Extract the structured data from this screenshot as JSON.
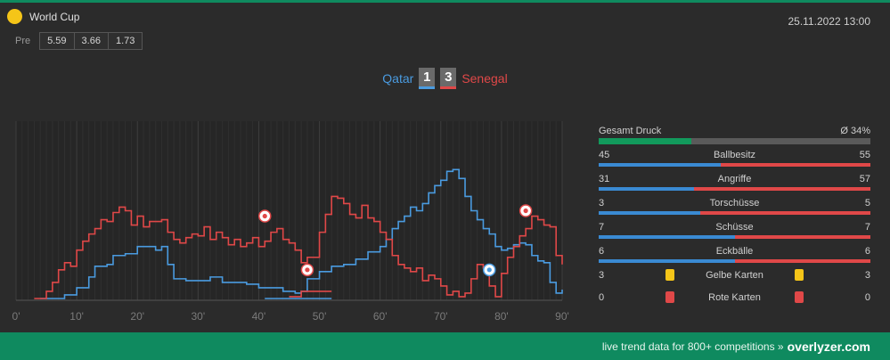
{
  "header": {
    "competition": "World Cup",
    "date": "25.11.2022 13:00",
    "pre_label": "Pre",
    "odds": [
      "5.59",
      "3.66",
      "1.73"
    ]
  },
  "match": {
    "home": "Qatar",
    "away": "Senegal",
    "home_score": "1",
    "away_score": "3"
  },
  "colors": {
    "home": "#4a9be0",
    "away": "#e04848",
    "brand": "#0f8a5f",
    "yellow": "#f5c518",
    "red": "#e04848"
  },
  "chart_data": {
    "type": "line",
    "x_ticks": [
      "0'",
      "10'",
      "20'",
      "30'",
      "40'",
      "50'",
      "60'",
      "70'",
      "80'",
      "90'"
    ],
    "xlim": [
      0,
      90
    ],
    "ylim": [
      0,
      100
    ],
    "grid": true,
    "series": [
      {
        "name": "Qatar",
        "color": "#4a9be0",
        "segments": [
          [
            [
              4,
              1
            ],
            [
              8,
              3
            ],
            [
              10,
              7
            ],
            [
              12,
              13
            ],
            [
              13,
              19
            ],
            [
              15,
              20
            ],
            [
              16,
              25
            ],
            [
              18,
              26
            ],
            [
              20,
              30
            ],
            [
              22,
              30
            ],
            [
              23,
              28
            ],
            [
              24,
              30
            ],
            [
              25,
              20
            ],
            [
              26,
              12
            ],
            [
              28,
              11
            ],
            [
              30,
              11
            ],
            [
              32,
              13
            ],
            [
              34,
              10
            ],
            [
              36,
              10
            ],
            [
              38,
              9
            ],
            [
              40,
              7
            ],
            [
              42,
              7
            ],
            [
              44,
              5
            ],
            [
              46,
              4
            ],
            [
              47,
              5
            ],
            [
              48,
              12
            ],
            [
              50,
              16
            ],
            [
              52,
              19
            ],
            [
              54,
              20
            ],
            [
              56,
              23
            ],
            [
              58,
              27
            ],
            [
              60,
              30
            ],
            [
              61,
              34
            ],
            [
              62,
              40
            ],
            [
              63,
              44
            ],
            [
              64,
              47
            ],
            [
              65,
              52
            ],
            [
              66,
              50
            ],
            [
              67,
              54
            ],
            [
              68,
              60
            ],
            [
              69,
              64
            ],
            [
              70,
              67
            ],
            [
              71,
              72
            ],
            [
              72,
              73
            ],
            [
              73,
              68
            ],
            [
              74,
              58
            ],
            [
              75,
              50
            ],
            [
              76,
              45
            ],
            [
              77,
              40
            ],
            [
              78,
              37
            ],
            [
              79,
              30
            ],
            [
              80,
              28
            ],
            [
              81,
              29
            ],
            [
              82,
              31
            ],
            [
              83,
              32
            ],
            [
              84,
              31
            ],
            [
              85,
              25
            ],
            [
              86,
              22
            ],
            [
              87,
              21
            ],
            [
              88,
              10
            ],
            [
              89,
              4
            ],
            [
              90,
              6
            ]
          ],
          [
            [
              41,
              1
            ],
            [
              52,
              1
            ]
          ]
        ]
      },
      {
        "name": "Senegal",
        "color": "#e04848",
        "segments": [
          [
            [
              3,
              1
            ],
            [
              5,
              5
            ],
            [
              6,
              10
            ],
            [
              7,
              17
            ],
            [
              8,
              21
            ],
            [
              9,
              19
            ],
            [
              10,
              28
            ],
            [
              11,
              33
            ],
            [
              12,
              37
            ],
            [
              13,
              40
            ],
            [
              14,
              45
            ],
            [
              15,
              44
            ],
            [
              16,
              49
            ],
            [
              17,
              52
            ],
            [
              18,
              50
            ],
            [
              19,
              42
            ],
            [
              20,
              47
            ],
            [
              21,
              41
            ],
            [
              22,
              44
            ],
            [
              24,
              45
            ],
            [
              25,
              38
            ],
            [
              26,
              34
            ],
            [
              27,
              32
            ],
            [
              28,
              35
            ],
            [
              29,
              37
            ],
            [
              30,
              36
            ],
            [
              31,
              41
            ],
            [
              32,
              34
            ],
            [
              33,
              38
            ],
            [
              34,
              35
            ],
            [
              35,
              31
            ],
            [
              36,
              34
            ],
            [
              37,
              30
            ],
            [
              38,
              32
            ],
            [
              39,
              35
            ],
            [
              40,
              30
            ],
            [
              41,
              33
            ],
            [
              42,
              38
            ],
            [
              43,
              40
            ],
            [
              44,
              34
            ],
            [
              45,
              32
            ],
            [
              46,
              28
            ],
            [
              47,
              21
            ],
            [
              48,
              24
            ],
            [
              50,
              38
            ],
            [
              51,
              48
            ],
            [
              52,
              58
            ],
            [
              53,
              57
            ],
            [
              54,
              54
            ],
            [
              55,
              48
            ],
            [
              56,
              46
            ],
            [
              57,
              53
            ],
            [
              58,
              46
            ],
            [
              59,
              44
            ],
            [
              60,
              38
            ],
            [
              61,
              34
            ],
            [
              62,
              25
            ],
            [
              63,
              20
            ],
            [
              64,
              18
            ],
            [
              65,
              16
            ],
            [
              66,
              18
            ],
            [
              67,
              11
            ],
            [
              68,
              14
            ],
            [
              69,
              12
            ],
            [
              70,
              8
            ],
            [
              71,
              3
            ],
            [
              72,
              5
            ],
            [
              73,
              2
            ],
            [
              74,
              4
            ],
            [
              75,
              12
            ],
            [
              76,
              20
            ],
            [
              77,
              18
            ],
            [
              78,
              8
            ],
            [
              79,
              2
            ],
            [
              80,
              15
            ],
            [
              81,
              24
            ],
            [
              82,
              30
            ],
            [
              83,
              36
            ],
            [
              84,
              40
            ],
            [
              85,
              47
            ],
            [
              86,
              45
            ],
            [
              87,
              42
            ],
            [
              88,
              41
            ],
            [
              89,
              25
            ],
            [
              90,
              20
            ]
          ],
          [
            [
              45,
              2
            ],
            [
              47,
              5
            ],
            [
              50,
              5
            ],
            [
              52,
              5
            ]
          ]
        ]
      }
    ],
    "goals": [
      {
        "minute": 41,
        "value": 47,
        "team": "Senegal"
      },
      {
        "minute": 48,
        "value": 17,
        "team": "Senegal"
      },
      {
        "minute": 78,
        "value": 17,
        "team": "Qatar"
      },
      {
        "minute": 84,
        "value": 50,
        "team": "Senegal"
      }
    ]
  },
  "stats": {
    "pressure_label": "Gesamt Druck",
    "pressure_value": "Ø 34%",
    "pressure_fraction": 0.34,
    "rows": [
      {
        "label": "Ballbesitz",
        "home": "45",
        "away": "55"
      },
      {
        "label": "Angriffe",
        "home": "31",
        "away": "57"
      },
      {
        "label": "Torschüsse",
        "home": "3",
        "away": "5"
      },
      {
        "label": "Schüsse",
        "home": "7",
        "away": "7"
      },
      {
        "label": "Eckbälle",
        "home": "6",
        "away": "6"
      }
    ],
    "cards": [
      {
        "label": "Gelbe Karten",
        "home": "3",
        "away": "3",
        "color": "#f5c518"
      },
      {
        "label": "Rote Karten",
        "home": "0",
        "away": "0",
        "color": "#e04848"
      }
    ]
  },
  "footer": {
    "text": "live trend data for 800+ competitions »",
    "brand": "overlyzer.com"
  }
}
